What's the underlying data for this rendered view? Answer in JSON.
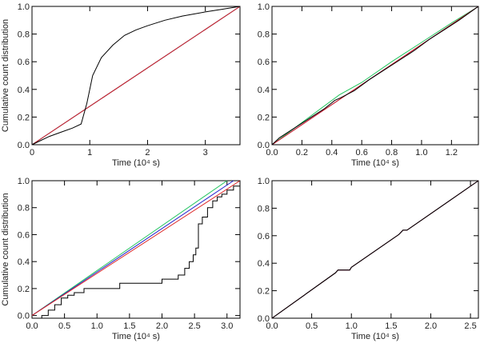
{
  "chart_data": [
    {
      "type": "line",
      "xlabel": "Time (10⁴ s)",
      "ylabel": "Cumulative count distribution",
      "xlim": [
        0,
        3.6
      ],
      "ylim": [
        0,
        1.0
      ],
      "xticks": [
        0,
        1,
        2,
        3
      ],
      "yticks": [
        0.0,
        0.2,
        0.4,
        0.6,
        0.8,
        1.0
      ],
      "xtick_labels": [
        "0",
        "1",
        "2",
        "3"
      ],
      "ytick_labels": [
        "0.0",
        "0.2",
        "0.4",
        "0.6",
        "0.8",
        "1.0"
      ],
      "series": [
        {
          "color": "#22c55e",
          "x": [
            0,
            3.6
          ],
          "y": [
            0,
            1.0
          ]
        },
        {
          "color": "#2222cc",
          "x": [
            0,
            3.6
          ],
          "y": [
            0,
            1.0
          ]
        },
        {
          "color": "#dd2222",
          "x": [
            0,
            3.6
          ],
          "y": [
            0,
            1.0
          ]
        },
        {
          "color": "#000000",
          "x": [
            0,
            0.1,
            0.3,
            0.5,
            0.7,
            0.85,
            0.95,
            1.05,
            1.2,
            1.4,
            1.6,
            1.8,
            2.0,
            2.3,
            2.6,
            3.0,
            3.3,
            3.6
          ],
          "y": [
            0,
            0.02,
            0.06,
            0.09,
            0.12,
            0.15,
            0.3,
            0.5,
            0.63,
            0.72,
            0.79,
            0.83,
            0.86,
            0.9,
            0.93,
            0.96,
            0.98,
            1.0
          ]
        }
      ]
    },
    {
      "type": "line",
      "xlabel": "Time (10⁴ s)",
      "ylabel": "",
      "xlim": [
        0,
        1.38
      ],
      "ylim": [
        0,
        1.0
      ],
      "xticks": [
        0,
        0.2,
        0.4,
        0.6,
        0.8,
        1.0,
        1.2
      ],
      "yticks": [
        0.0,
        0.2,
        0.4,
        0.6,
        0.8,
        1.0
      ],
      "xtick_labels": [
        "0.0",
        "0.2",
        "0.4",
        "0.6",
        "0.8",
        "1.0",
        "1.2"
      ],
      "ytick_labels": [
        "0.0",
        "0.2",
        "0.4",
        "0.6",
        "0.8",
        "1.0"
      ],
      "series": [
        {
          "color": "#22c55e",
          "x": [
            0,
            0.2,
            0.4,
            0.45,
            0.6,
            0.8,
            1.0,
            1.2,
            1.38
          ],
          "y": [
            0,
            0.16,
            0.32,
            0.36,
            0.45,
            0.6,
            0.74,
            0.88,
            1.0
          ]
        },
        {
          "color": "#2222cc",
          "x": [
            0,
            1.38
          ],
          "y": [
            0,
            1.0
          ]
        },
        {
          "color": "#dd2222",
          "x": [
            0,
            1.38
          ],
          "y": [
            0,
            1.0
          ]
        },
        {
          "color": "#000000",
          "x": [
            0,
            0.05,
            0.15,
            0.25,
            0.35,
            0.42,
            0.46,
            0.55,
            0.65,
            0.75,
            0.85,
            0.95,
            1.05,
            1.15,
            1.25,
            1.38
          ],
          "y": [
            0,
            0.05,
            0.12,
            0.19,
            0.26,
            0.32,
            0.34,
            0.39,
            0.47,
            0.54,
            0.61,
            0.68,
            0.76,
            0.83,
            0.9,
            1.0
          ]
        }
      ]
    },
    {
      "type": "line",
      "xlabel": "Time (10⁴ s)",
      "ylabel": "Cumulative count distribution",
      "xlim": [
        0,
        3.2
      ],
      "ylim": [
        -0.02,
        1.0
      ],
      "xticks": [
        0,
        0.5,
        1.0,
        1.5,
        2.0,
        2.5,
        3.0
      ],
      "yticks": [
        0.0,
        0.2,
        0.4,
        0.6,
        0.8,
        1.0
      ],
      "xtick_labels": [
        "0.0",
        "0.5",
        "1.0",
        "1.5",
        "2.0",
        "2.5",
        "3.0"
      ],
      "ytick_labels": [
        "0.0",
        "0.2",
        "0.4",
        "0.6",
        "0.8",
        "1.0"
      ],
      "series": [
        {
          "color": "#22c55e",
          "x": [
            0,
            3.0
          ],
          "y": [
            0,
            1.0
          ]
        },
        {
          "color": "#2222cc",
          "x": [
            0,
            3.1
          ],
          "y": [
            0,
            1.0
          ]
        },
        {
          "color": "#dd2222",
          "x": [
            0,
            3.2
          ],
          "y": [
            0,
            1.0
          ]
        },
        {
          "color": "#000000",
          "step": true,
          "x": [
            0,
            0.15,
            0.25,
            0.35,
            0.45,
            0.55,
            0.65,
            0.8,
            1.35,
            2.0,
            2.25,
            2.35,
            2.42,
            2.48,
            2.52,
            2.56,
            2.62,
            2.7,
            2.78,
            2.85,
            2.92,
            3.0,
            3.1,
            3.2
          ],
          "y": [
            -0.02,
            0.0,
            0.04,
            0.08,
            0.13,
            0.15,
            0.17,
            0.2,
            0.24,
            0.27,
            0.3,
            0.35,
            0.4,
            0.45,
            0.5,
            0.68,
            0.73,
            0.8,
            0.85,
            0.88,
            0.9,
            0.93,
            0.96,
            1.0
          ]
        }
      ]
    },
    {
      "type": "line",
      "xlabel": "Time (10⁴ s)",
      "ylabel": "",
      "xlim": [
        0,
        2.6
      ],
      "ylim": [
        0,
        1.0
      ],
      "xticks": [
        0,
        0.5,
        1.0,
        1.5,
        2.0,
        2.5
      ],
      "yticks": [
        0.0,
        0.2,
        0.4,
        0.6,
        0.8,
        1.0
      ],
      "xtick_labels": [
        "0.0",
        "0.5",
        "1.0",
        "1.5",
        "2.0",
        "2.5"
      ],
      "ytick_labels": [
        "0.0",
        "0.2",
        "0.4",
        "0.6",
        "0.8",
        "1.0"
      ],
      "series": [
        {
          "color": "#22c55e",
          "x": [
            0,
            0.8,
            0.83,
            0.98,
            1.0,
            1.6,
            1.65,
            1.7,
            2.6
          ],
          "y": [
            0,
            0.33,
            0.35,
            0.35,
            0.37,
            0.61,
            0.64,
            0.64,
            1.0
          ]
        },
        {
          "color": "#2222cc",
          "x": [
            0,
            0.8,
            0.83,
            0.98,
            1.0,
            1.6,
            1.65,
            1.7,
            2.6
          ],
          "y": [
            0,
            0.33,
            0.35,
            0.35,
            0.37,
            0.61,
            0.64,
            0.64,
            1.0
          ]
        },
        {
          "color": "#dd2222",
          "x": [
            0,
            0.8,
            0.83,
            0.98,
            1.0,
            1.6,
            1.65,
            1.7,
            2.6
          ],
          "y": [
            0,
            0.33,
            0.35,
            0.35,
            0.37,
            0.61,
            0.64,
            0.64,
            1.0
          ]
        },
        {
          "color": "#000000",
          "x": [
            0,
            0.8,
            0.83,
            0.98,
            1.0,
            1.6,
            1.65,
            1.7,
            2.6
          ],
          "y": [
            0,
            0.33,
            0.35,
            0.35,
            0.37,
            0.61,
            0.64,
            0.64,
            1.0
          ]
        }
      ]
    }
  ]
}
